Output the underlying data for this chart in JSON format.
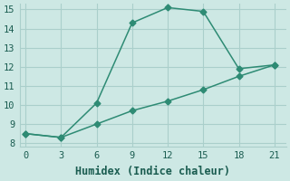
{
  "line1_x": [
    0,
    3,
    6,
    9,
    12,
    15,
    18,
    21
  ],
  "line1_y": [
    8.5,
    8.3,
    10.1,
    14.3,
    15.1,
    14.9,
    11.9,
    12.1
  ],
  "line2_x": [
    0,
    3,
    6,
    9,
    12,
    15,
    18,
    21
  ],
  "line2_y": [
    8.5,
    8.3,
    9.0,
    9.7,
    10.2,
    10.8,
    11.5,
    12.1
  ],
  "color": "#2e8b74",
  "bg_color": "#cde8e4",
  "grid_color": "#aacfcb",
  "xlabel": "Humidex (Indice chaleur)",
  "xlim": [
    -0.5,
    22
  ],
  "ylim": [
    7.8,
    15.3
  ],
  "xticks": [
    0,
    3,
    6,
    9,
    12,
    15,
    18,
    21
  ],
  "yticks": [
    8,
    9,
    10,
    11,
    12,
    13,
    14,
    15
  ],
  "markersize": 3.5,
  "linewidth": 1.1,
  "font_family": "monospace",
  "xlabel_fontsize": 8.5,
  "tick_fontsize": 7.5
}
